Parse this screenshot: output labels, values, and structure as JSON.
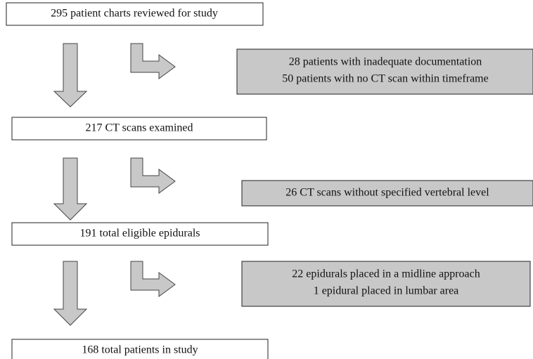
{
  "nodes": [
    {
      "label": "295 patient charts reviewed for study"
    },
    {
      "label": "217 CT scans examined"
    },
    {
      "label": "191 total eligible epidurals"
    },
    {
      "label": "168 total patients in study"
    }
  ],
  "exclusions": [
    {
      "lines": [
        "28 patients with inadequate documentation",
        "50 patients with no CT scan within timeframe"
      ]
    },
    {
      "lines": [
        "26 CT scans without specified vertebral level"
      ]
    },
    {
      "lines": [
        "22 epidurals placed in a midline approach",
        "1 epidural placed in lumbar area"
      ]
    }
  ]
}
